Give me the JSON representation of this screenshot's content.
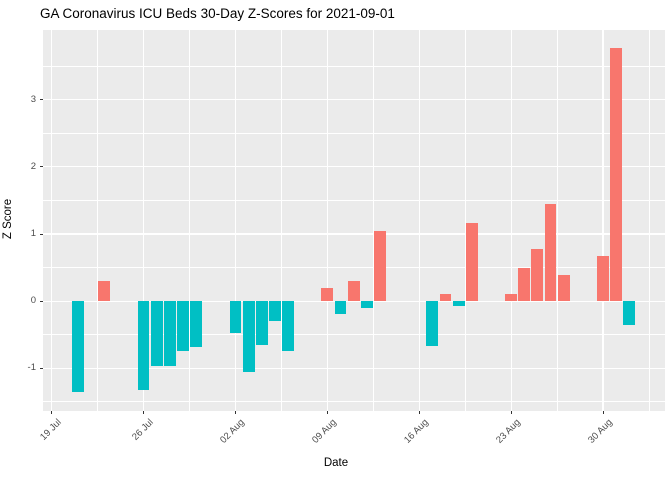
{
  "title": "GA Coronavirus ICU Beds 30-Day Z-Scores for 2021-09-01",
  "chart_data": {
    "type": "bar",
    "title": "GA Coronavirus ICU Beds 30-Day Z-Scores for 2021-09-01",
    "xlabel": "Date",
    "ylabel": "Z Score",
    "legend": "none",
    "grid": "white major and minor gridlines on gray panel",
    "x_axis": {
      "tick_labels": [
        "19 Jul",
        "26 Jul",
        "02 Aug",
        "09 Aug",
        "16 Aug",
        "23 Aug",
        "30 Aug"
      ],
      "tick_days": [
        0,
        7,
        14,
        21,
        28,
        35,
        42
      ],
      "minor_days": [
        3.5,
        10.5,
        17.5,
        24.5,
        31.5,
        38.5,
        45.5
      ],
      "xlim_days": [
        -0.7,
        46.72
      ]
    },
    "y_axis": {
      "tick_labels": [
        "-1",
        "0",
        "1",
        "2",
        "3"
      ],
      "tick_values": [
        -1,
        0,
        1,
        2,
        3
      ],
      "minor_values": [
        -1.5,
        -0.5,
        0.5,
        1.5,
        2.5,
        3.5
      ],
      "ylim": [
        -1.63,
        4.04
      ]
    },
    "colors": {
      "positive_bar": "#F8766D",
      "negative_bar": "#00BFC4",
      "panel_bg": "#EBEBEB",
      "gridline": "#FFFFFF",
      "axis_text": "#4D4D4D",
      "title_text": "#000000"
    },
    "bar_width_days": 0.9,
    "points": [
      {
        "date": "21 Jul",
        "day": 2,
        "z": -1.35
      },
      {
        "date": "23 Jul",
        "day": 4,
        "z": 0.3
      },
      {
        "date": "26 Jul",
        "day": 7,
        "z": -1.33
      },
      {
        "date": "27 Jul",
        "day": 8,
        "z": -0.96
      },
      {
        "date": "28 Jul",
        "day": 9,
        "z": -0.96
      },
      {
        "date": "29 Jul",
        "day": 10,
        "z": -0.75
      },
      {
        "date": "30 Jul",
        "day": 11,
        "z": -0.68
      },
      {
        "date": "02 Aug",
        "day": 14,
        "z": -0.48
      },
      {
        "date": "03 Aug",
        "day": 15,
        "z": -1.05
      },
      {
        "date": "04 Aug",
        "day": 16,
        "z": -0.65
      },
      {
        "date": "05 Aug",
        "day": 17,
        "z": -0.29
      },
      {
        "date": "06 Aug",
        "day": 18,
        "z": -0.75
      },
      {
        "date": "09 Aug",
        "day": 21,
        "z": 0.19
      },
      {
        "date": "10 Aug",
        "day": 22,
        "z": -0.19
      },
      {
        "date": "11 Aug",
        "day": 23,
        "z": 0.3
      },
      {
        "date": "12 Aug",
        "day": 24,
        "z": -0.1
      },
      {
        "date": "13 Aug",
        "day": 25,
        "z": 1.05
      },
      {
        "date": "17 Aug",
        "day": 29,
        "z": -0.67
      },
      {
        "date": "18 Aug",
        "day": 30,
        "z": 0.11
      },
      {
        "date": "19 Aug",
        "day": 31,
        "z": -0.08
      },
      {
        "date": "20 Aug",
        "day": 32,
        "z": 1.16
      },
      {
        "date": "23 Aug",
        "day": 35,
        "z": 0.11
      },
      {
        "date": "24 Aug",
        "day": 36,
        "z": 0.5
      },
      {
        "date": "25 Aug",
        "day": 37,
        "z": 0.78
      },
      {
        "date": "26 Aug",
        "day": 38,
        "z": 1.45
      },
      {
        "date": "27 Aug",
        "day": 39,
        "z": 0.39
      },
      {
        "date": "30 Aug",
        "day": 42,
        "z": 0.67
      },
      {
        "date": "31 Aug",
        "day": 43,
        "z": 3.77
      },
      {
        "date": "01 Sep",
        "day": 44,
        "z": -0.36
      }
    ]
  }
}
